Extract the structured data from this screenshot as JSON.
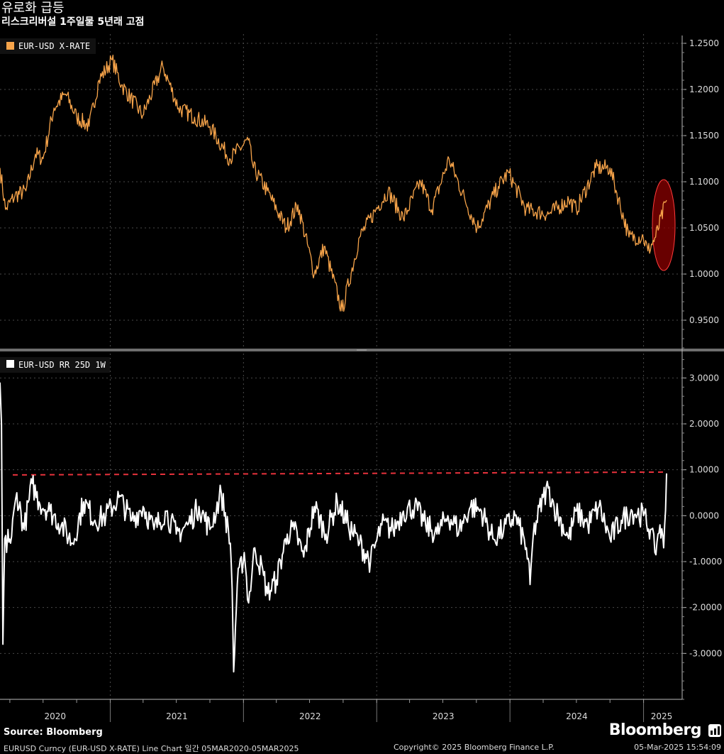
{
  "header": {
    "title": "유로화 급등",
    "subtitle": "리스크리버설 1주일물 5년래 고점"
  },
  "source": "Source: Bloomberg",
  "logo": "Bloomberg",
  "footer": {
    "left": "EURUSD Curncy (EUR-USD X-RATE) Line Chart 일간 05MAR2020-05MAR2025",
    "center": "Copyright© 2025 Bloomberg Finance L.P.",
    "right": "05-Mar-2025 15:54:09"
  },
  "colors": {
    "background": "#000000",
    "spot_line": "#f7a44a",
    "rr_line": "#ffffff",
    "reference_line": "#e8323c",
    "highlight": "#8b0000",
    "grid": "#555555"
  },
  "chart_data": [
    {
      "type": "line",
      "legend": "EUR-USD X-RATE",
      "ylim": [
        0.92,
        1.26
      ],
      "yticks": [
        "1.2500",
        "1.2000",
        "1.1500",
        "1.1000",
        "1.0500",
        "1.0000",
        "0.9500"
      ],
      "x_range": [
        "2020-03-05",
        "2025-03-05"
      ],
      "series": [
        {
          "name": "EUR-USD X-RATE",
          "x": [
            "2020-03-05",
            "2020-03-20",
            "2020-04-15",
            "2020-05-15",
            "2020-06-10",
            "2020-07-01",
            "2020-07-31",
            "2020-09-01",
            "2020-10-01",
            "2020-11-04",
            "2020-12-01",
            "2021-01-06",
            "2021-02-01",
            "2021-03-31",
            "2021-05-25",
            "2021-07-07",
            "2021-08-20",
            "2021-10-01",
            "2021-11-24",
            "2022-01-14",
            "2022-01-28",
            "2022-03-07",
            "2022-04-28",
            "2022-05-30",
            "2022-07-14",
            "2022-08-10",
            "2022-09-28",
            "2022-11-15",
            "2022-12-30",
            "2023-02-01",
            "2023-03-15",
            "2023-05-01",
            "2023-06-01",
            "2023-07-18",
            "2023-08-31",
            "2023-10-03",
            "2023-11-30",
            "2023-12-28",
            "2024-02-14",
            "2024-04-16",
            "2024-06-10",
            "2024-07-01",
            "2024-08-23",
            "2024-10-01",
            "2024-11-22",
            "2024-12-31",
            "2025-01-13",
            "2025-02-03",
            "2025-03-05"
          ],
          "y": [
            1.115,
            1.07,
            1.085,
            1.09,
            1.13,
            1.125,
            1.18,
            1.195,
            1.17,
            1.16,
            1.21,
            1.232,
            1.205,
            1.172,
            1.225,
            1.18,
            1.17,
            1.16,
            1.125,
            1.145,
            1.115,
            1.09,
            1.05,
            1.075,
            1.0,
            1.03,
            0.96,
            1.04,
            1.07,
            1.09,
            1.06,
            1.1,
            1.07,
            1.125,
            1.08,
            1.05,
            1.095,
            1.11,
            1.07,
            1.065,
            1.08,
            1.07,
            1.115,
            1.115,
            1.04,
            1.04,
            1.025,
            1.04,
            1.08
          ]
        }
      ]
    },
    {
      "type": "line",
      "legend": "EUR-USD RR 25D 1W",
      "ylim": [
        -4.0,
        3.5
      ],
      "yticks": [
        "3.0000",
        "2.0000",
        "1.0000",
        "0.0000",
        "-1.0000",
        "-2.0000",
        "-3.0000"
      ],
      "xticks": [
        "2020",
        "2021",
        "2022",
        "2023",
        "2024",
        "2025"
      ],
      "reference_line": 0.95,
      "series": [
        {
          "name": "EUR-USD RR 25D 1W",
          "x": [
            "2020-03-05",
            "2020-03-09",
            "2020-03-13",
            "2020-03-18",
            "2020-03-23",
            "2020-03-27",
            "2020-04-03",
            "2020-04-20",
            "2020-05-10",
            "2020-06-01",
            "2020-06-20",
            "2020-07-20",
            "2020-08-20",
            "2020-09-20",
            "2020-10-20",
            "2020-11-20",
            "2020-12-20",
            "2021-01-25",
            "2021-03-01",
            "2021-04-01",
            "2021-05-01",
            "2021-06-01",
            "2021-07-01",
            "2021-08-01",
            "2021-09-01",
            "2021-10-01",
            "2021-11-01",
            "2021-11-26",
            "2021-12-01",
            "2021-12-05",
            "2021-12-15",
            "2022-01-03",
            "2022-01-15",
            "2022-02-01",
            "2022-02-25",
            "2022-03-08",
            "2022-04-01",
            "2022-05-01",
            "2022-05-20",
            "2022-06-15",
            "2022-07-14",
            "2022-08-15",
            "2022-09-15",
            "2022-10-15",
            "2022-11-15",
            "2022-12-15",
            "2023-01-15",
            "2023-02-15",
            "2023-03-15",
            "2023-04-15",
            "2023-05-15",
            "2023-06-15",
            "2023-07-15",
            "2023-08-15",
            "2023-09-15",
            "2023-10-15",
            "2023-11-15",
            "2023-12-15",
            "2024-01-15",
            "2024-02-15",
            "2024-02-25",
            "2024-03-05",
            "2024-04-01",
            "2024-04-15",
            "2024-05-01",
            "2024-06-10",
            "2024-07-01",
            "2024-08-01",
            "2024-09-01",
            "2024-10-01",
            "2024-11-01",
            "2024-12-01",
            "2025-01-01",
            "2025-01-20",
            "2025-02-01",
            "2025-02-15",
            "2025-02-25",
            "2025-03-05"
          ],
          "y": [
            2.9,
            2.0,
            -2.8,
            -0.5,
            -0.8,
            -0.3,
            -0.6,
            0.5,
            -0.3,
            0.7,
            0.3,
            0.1,
            -0.2,
            -0.6,
            0.3,
            -0.1,
            0.0,
            0.4,
            -0.1,
            0.2,
            -0.3,
            0.1,
            -0.4,
            -0.2,
            0.2,
            -0.3,
            0.5,
            -0.6,
            -1.6,
            -3.4,
            -1.5,
            -0.8,
            -1.9,
            -0.7,
            -1.3,
            -1.7,
            -1.4,
            -0.4,
            -0.3,
            -0.9,
            0.2,
            -0.4,
            0.3,
            -0.2,
            -0.6,
            -1.0,
            -0.2,
            -0.3,
            0.1,
            0.2,
            -0.2,
            -0.4,
            0.0,
            -0.3,
            0.2,
            0.1,
            -0.5,
            -0.3,
            0.0,
            -0.7,
            -1.5,
            -0.4,
            0.4,
            0.6,
            0.2,
            -0.5,
            0.1,
            -0.2,
            0.2,
            -0.5,
            -0.1,
            0.1,
            0.0,
            -0.3,
            -0.8,
            -0.2,
            -0.7,
            0.92
          ]
        }
      ]
    }
  ]
}
